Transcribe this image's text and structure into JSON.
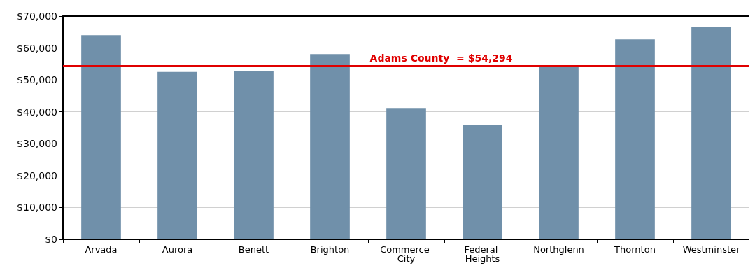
{
  "chart_data": {
    "type": "bar",
    "categories": [
      "Arvada",
      "Aurora",
      "Benett",
      "Brighton",
      "Commerce City",
      "Federal Heights",
      "Northglenn",
      "Thornton",
      "Westminster"
    ],
    "values": [
      64000,
      52500,
      52900,
      58100,
      41200,
      35800,
      54000,
      62700,
      66500
    ],
    "color": "#7090aa",
    "ylim": [
      0,
      70000
    ],
    "yticks": [
      {
        "value": 0,
        "label": "$0"
      },
      {
        "value": 10000,
        "label": "$10,000"
      },
      {
        "value": 20000,
        "label": "$20,000"
      },
      {
        "value": 30000,
        "label": "$30,000"
      },
      {
        "value": 40000,
        "label": "$40,000"
      },
      {
        "value": 50000,
        "label": "$50,000"
      },
      {
        "value": 60000,
        "label": "$60,000"
      },
      {
        "value": 70000,
        "label": "$70,000"
      }
    ],
    "grid": "y",
    "ref_lines": [
      {
        "axis": "y",
        "value": 54294,
        "label": "Adams County  = $54,294",
        "color": "#e00000",
        "line_style": "solid"
      }
    ]
  }
}
